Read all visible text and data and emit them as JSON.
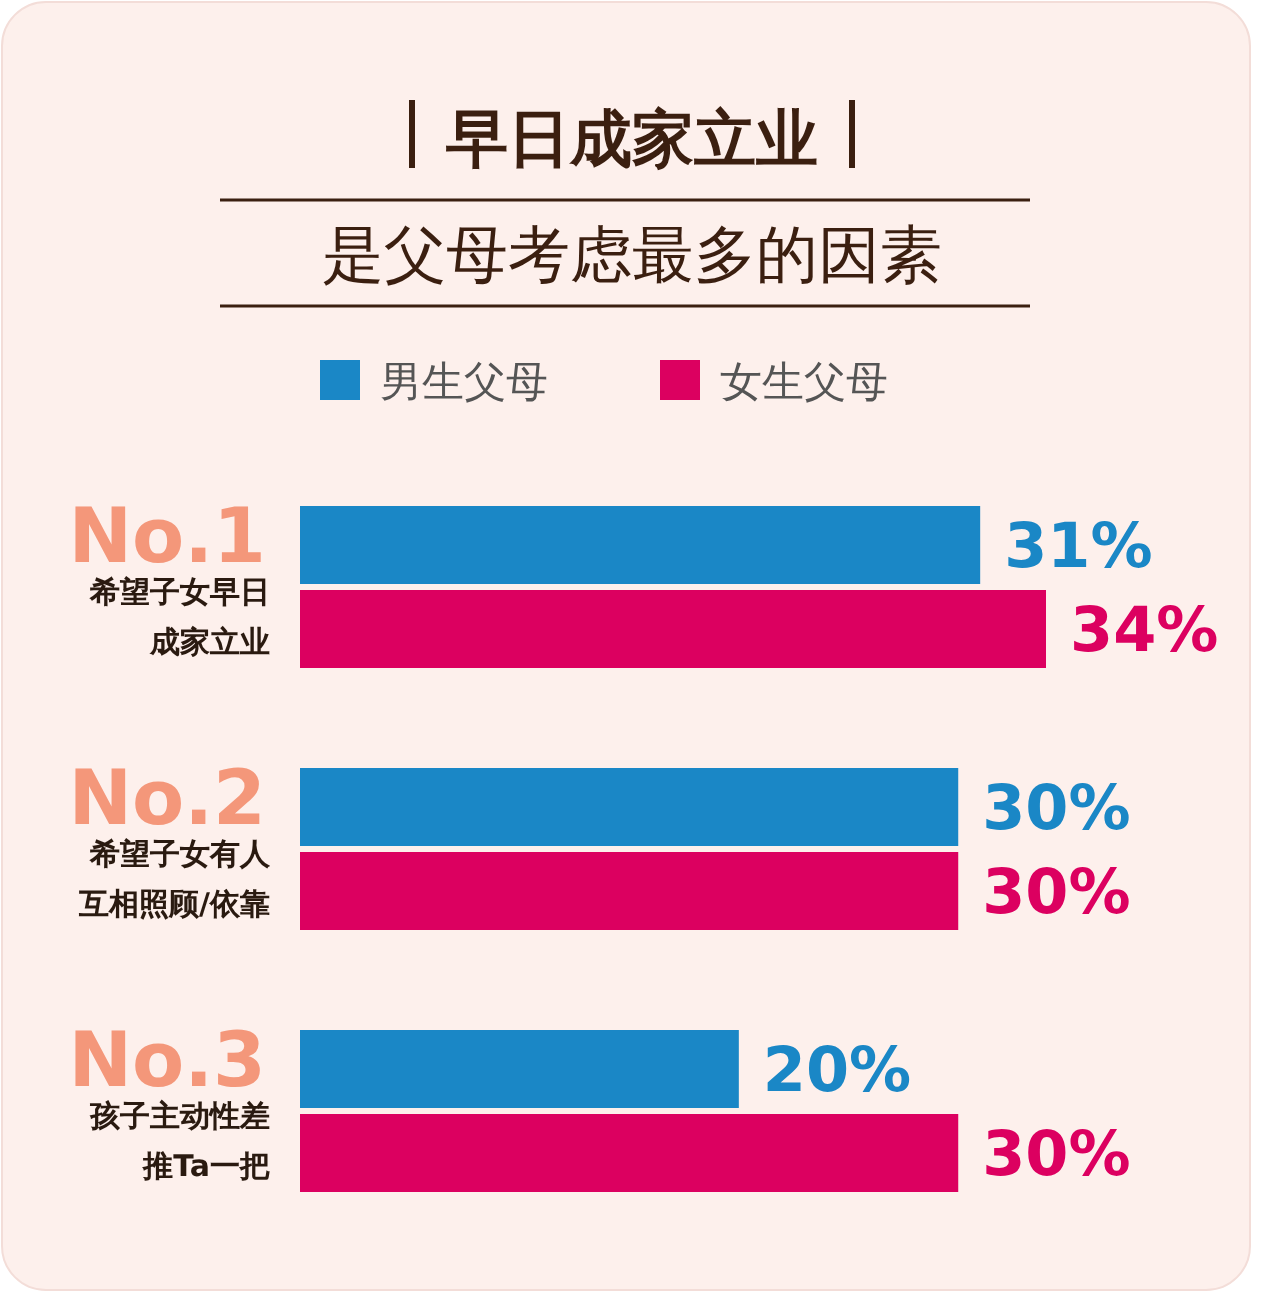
{
  "chart_data": {
    "type": "bar",
    "orientation": "horizontal",
    "title": "早日成家立业",
    "subtitle": "是父母考虑最多的因素",
    "categories": [
      "No.1\n希望子女早日成家立业",
      "No.2\n希望子女有人互相照顾/依靠",
      "No.3\n孩子主动性差推Ta一把"
    ],
    "series": [
      {
        "name": "男生父母",
        "color": "#1a87c6",
        "values": [
          31,
          30,
          20
        ],
        "value_labels": [
          "31%",
          "30%",
          "20%"
        ]
      },
      {
        "name": "女生父母",
        "color": "#dc0060",
        "values": [
          34,
          30,
          30
        ],
        "value_labels": [
          "34%",
          "30%",
          "30%"
        ]
      }
    ],
    "legend": "top"
  }
}
